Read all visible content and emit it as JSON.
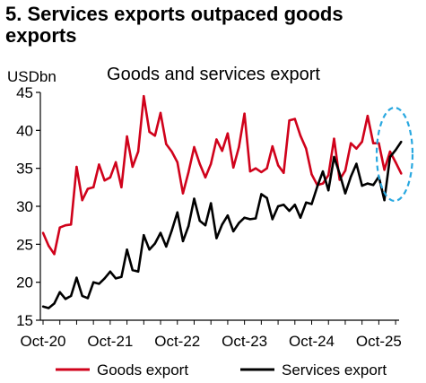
{
  "heading": "5. Services exports outpaced goods exports",
  "chart_data": {
    "type": "line",
    "title": "Goods and services export",
    "ylabel": "USDbn",
    "ylim": [
      15,
      45
    ],
    "yticks": [
      15,
      20,
      25,
      30,
      35,
      40,
      45
    ],
    "xticks": [
      "Oct-20",
      "Oct-21",
      "Oct-22",
      "Oct-23",
      "Oct-24",
      "Oct-25"
    ],
    "x_start": "Oct-20",
    "x_end": "Oct-25",
    "grid": false,
    "legend_position": "bottom",
    "series": [
      {
        "name": "Goods export",
        "color": "#d0021b",
        "values": [
          26.5,
          24.8,
          23.7,
          27.2,
          27.5,
          27.6,
          35.2,
          30.8,
          32.3,
          32.5,
          35.5,
          33.4,
          33.8,
          35.8,
          32.5,
          39.2,
          35.2,
          37.2,
          44.5,
          39.8,
          39.3,
          42.3,
          38.2,
          37.2,
          35.8,
          31.7,
          34.5,
          37.8,
          35.6,
          33.8,
          35.6,
          38.8,
          37.3,
          39.6,
          35.1,
          37.8,
          42.2,
          34.6,
          35.0,
          34.5,
          35.0,
          37.9,
          35.4,
          34.4,
          41.3,
          41.5,
          39.3,
          37.6,
          34.2,
          32.8,
          33.0,
          34.1,
          38.9,
          33.5,
          34.7,
          38.3,
          37.6,
          38.5,
          41.9,
          38.3,
          38.3,
          34.8,
          37.2,
          35.8,
          34.3
        ]
      },
      {
        "name": "Services export",
        "color": "#000000",
        "values": [
          16.8,
          16.6,
          17.2,
          18.7,
          17.8,
          18.2,
          20.6,
          18.2,
          17.9,
          20.0,
          19.8,
          20.5,
          21.4,
          20.5,
          20.7,
          24.3,
          21.6,
          21.4,
          26.2,
          24.3,
          25.1,
          26.5,
          24.7,
          26.8,
          29.2,
          25.4,
          27.4,
          31.0,
          28.1,
          27.5,
          30.4,
          25.8,
          27.6,
          28.8,
          26.7,
          27.8,
          28.5,
          28.3,
          28.4,
          31.6,
          31.1,
          28.3,
          30.0,
          30.2,
          29.4,
          30.2,
          28.5,
          30.5,
          30.3,
          32.6,
          34.6,
          32.1,
          36.5,
          34.3,
          31.7,
          33.9,
          35.6,
          32.7,
          33.0,
          32.8,
          33.9,
          30.8,
          36.5,
          37.4,
          38.5
        ]
      }
    ],
    "annotations": [
      {
        "shape": "dashed-ellipse",
        "color": "#29a8e0",
        "around": "Aug-25 to Oct-25"
      }
    ]
  }
}
